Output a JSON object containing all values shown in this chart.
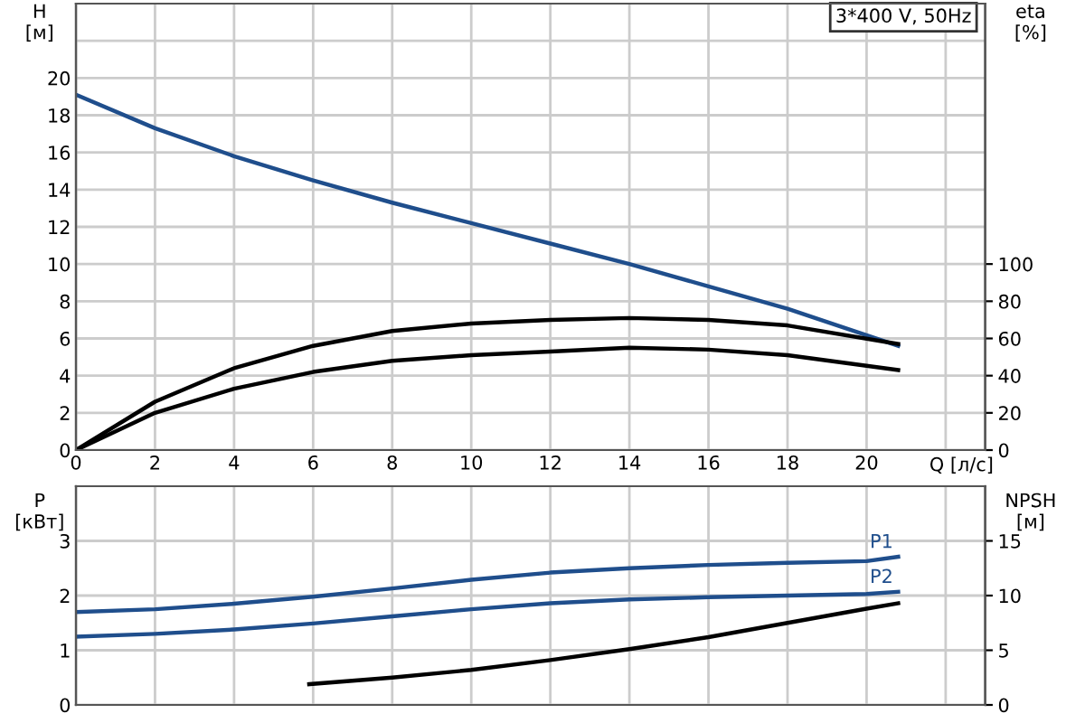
{
  "chart_data": [
    {
      "type": "line",
      "xlabel": "Q [л/с]",
      "ylabel": "H\n[м]",
      "y2label": "eta\n[%]",
      "annotations": [
        "3*400 V, 50Hz"
      ],
      "grid": true,
      "marker": "none",
      "line_style": "solid",
      "xlim": [
        0,
        23
      ],
      "xticks": [
        0,
        2,
        4,
        6,
        8,
        10,
        12,
        14,
        16,
        18,
        20,
        {
          "value": 22,
          "label": null
        }
      ],
      "ylim": [
        0,
        24
      ],
      "yticks": [
        0,
        2,
        4,
        6,
        8,
        10,
        12,
        14,
        16,
        18,
        20,
        {
          "value": 22,
          "label": null
        }
      ],
      "y2lim": [
        0,
        240
      ],
      "y2ticks": [
        0,
        20,
        40,
        60,
        80,
        100
      ],
      "series": [
        {
          "color": "#1f4e8c",
          "x": [
            0,
            2,
            4,
            6,
            8,
            10,
            12,
            14,
            16,
            18,
            20.8
          ],
          "values": [
            19.1,
            17.3,
            15.8,
            14.5,
            13.3,
            12.2,
            11.1,
            10.0,
            8.8,
            7.6,
            5.6
          ]
        },
        {
          "color": "#000000",
          "axis": "y2",
          "x": [
            0,
            2,
            4,
            6,
            8,
            10,
            12,
            14,
            16,
            18,
            20.8
          ],
          "values": [
            0,
            26,
            44,
            56,
            64,
            68,
            70,
            71,
            70,
            67,
            57
          ]
        },
        {
          "color": "#000000",
          "axis": "y2",
          "x": [
            0,
            2,
            4,
            6,
            8,
            10,
            12,
            14,
            16,
            18,
            20.8
          ],
          "values": [
            0,
            20,
            33,
            42,
            48,
            51,
            53,
            55,
            54,
            51,
            43
          ]
        }
      ]
    },
    {
      "type": "line",
      "ylabel": "P\n[кВт]",
      "y2label": "NPSH\n[м]",
      "grid": true,
      "marker": "none",
      "line_style": "solid",
      "tick_labels": "y",
      "xlim": [
        0,
        23
      ],
      "xticks": [
        0,
        2,
        4,
        6,
        8,
        10,
        12,
        14,
        16,
        18,
        20,
        22
      ],
      "ylim": [
        0,
        4
      ],
      "yticks": [
        0,
        1,
        2,
        3
      ],
      "y2lim": [
        0,
        20
      ],
      "y2ticks": [
        0,
        5,
        10,
        15
      ],
      "series": [
        {
          "name": "P1",
          "color": "#1f4e8c",
          "x": [
            0,
            2,
            4,
            6,
            8,
            10,
            12,
            14,
            16,
            18,
            20,
            20.8
          ],
          "values": [
            1.7,
            1.75,
            1.85,
            1.98,
            2.13,
            2.29,
            2.42,
            2.5,
            2.56,
            2.6,
            2.63,
            2.71
          ]
        },
        {
          "name": "P2",
          "color": "#1f4e8c",
          "x": [
            0,
            2,
            4,
            6,
            8,
            10,
            12,
            14,
            16,
            18,
            20,
            20.8
          ],
          "values": [
            1.25,
            1.3,
            1.38,
            1.49,
            1.62,
            1.75,
            1.86,
            1.93,
            1.97,
            2.0,
            2.03,
            2.07
          ]
        },
        {
          "color": "#000000",
          "axis": "y2",
          "x": [
            5.9,
            8,
            10,
            12,
            14,
            16,
            18,
            20,
            20.8
          ],
          "values": [
            1.9,
            2.5,
            3.2,
            4.1,
            5.1,
            6.2,
            7.5,
            8.8,
            9.3
          ]
        }
      ]
    }
  ]
}
